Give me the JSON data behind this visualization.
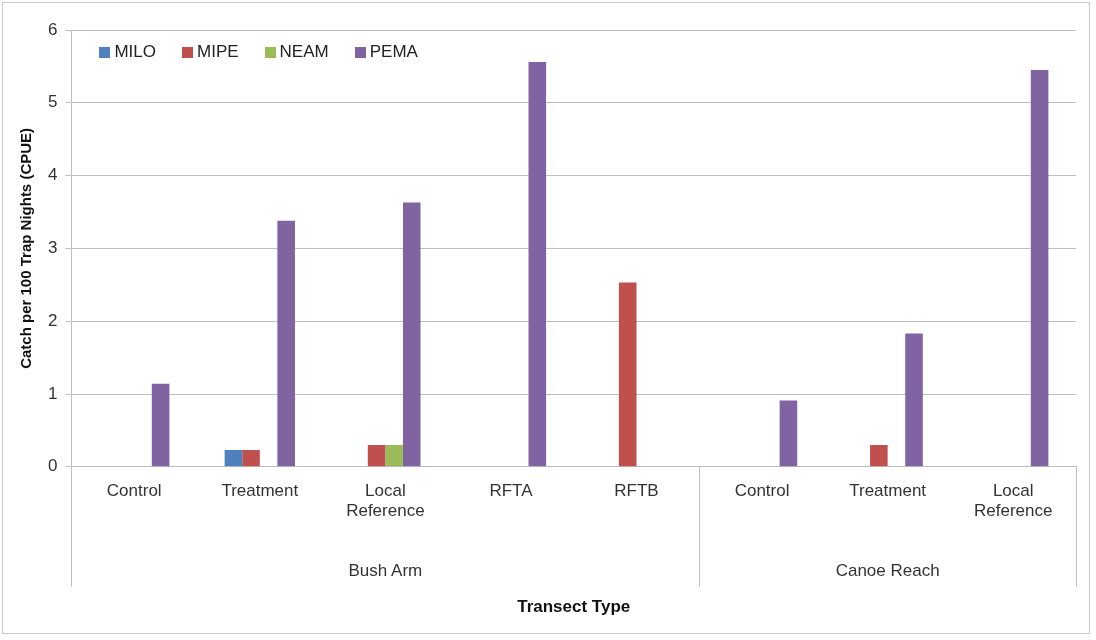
{
  "chart_data": {
    "type": "bar",
    "xlabel": "Transect Type",
    "ylabel": "Catch per 100 Trap Nights (CPUE)",
    "categories": [
      "Control",
      "Treatment",
      "Local Reference",
      "RFTA",
      "RFTB",
      "Control",
      "Treatment",
      "Local Reference"
    ],
    "series": [
      {
        "name": "MILO",
        "color": "#4f81bd",
        "values": [
          0,
          0.23,
          0,
          0,
          0,
          0,
          0,
          0
        ]
      },
      {
        "name": "MIPE",
        "color": "#c0504d",
        "values": [
          0,
          0.23,
          0.3,
          0,
          2.53,
          0,
          0.3,
          0
        ]
      },
      {
        "name": "NEAM",
        "color": "#9bbb59",
        "values": [
          0,
          0,
          0.3,
          0,
          0,
          0,
          0,
          0
        ]
      },
      {
        "name": "PEMA",
        "color": "#8064a2",
        "values": [
          1.14,
          3.38,
          3.63,
          5.56,
          0,
          0.91,
          1.83,
          5.45
        ]
      }
    ],
    "annotations": [
      "Bush Arm",
      "Canoe Reach"
    ],
    "ylim": [
      0,
      6
    ],
    "yticks": [
      0,
      1,
      2,
      3,
      4,
      5,
      6
    ],
    "grid": "y",
    "legend": "top left"
  }
}
